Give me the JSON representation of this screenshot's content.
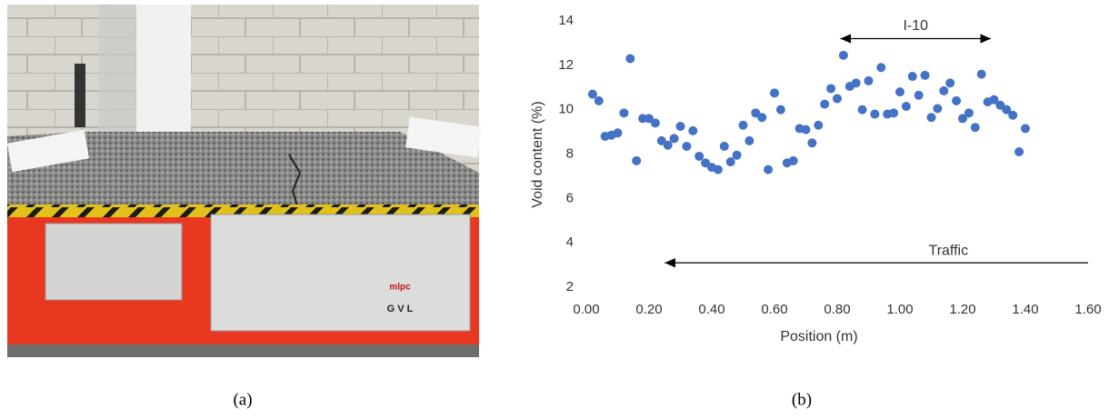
{
  "chart_data": {
    "type": "scatter",
    "x_label": "Position (m)",
    "y_label": "Void content (%)",
    "xlim": [
      0,
      1.6
    ],
    "ylim": [
      2,
      14
    ],
    "xticks": [
      {
        "value": 0,
        "label": "0.00"
      },
      {
        "value": 0.2,
        "label": "0.20"
      },
      {
        "value": 0.4,
        "label": "0.40"
      },
      {
        "value": 0.6,
        "label": "0.60"
      },
      {
        "value": 0.8,
        "label": "0.80"
      },
      {
        "value": 1,
        "label": "1.00"
      },
      {
        "value": 1.2,
        "label": "1.20"
      },
      {
        "value": 1.4,
        "label": "1.40"
      },
      {
        "value": 1.6,
        "label": "1.60"
      }
    ],
    "yticks": [
      2,
      4,
      6,
      8,
      10,
      12,
      14
    ],
    "grid": false,
    "color": "#4472c4",
    "x": [
      0.02,
      0.04,
      0.06,
      0.08,
      0.1,
      0.12,
      0.14,
      0.16,
      0.18,
      0.2,
      0.22,
      0.24,
      0.26,
      0.28,
      0.3,
      0.32,
      0.34,
      0.36,
      0.38,
      0.4,
      0.42,
      0.44,
      0.46,
      0.48,
      0.5,
      0.52,
      0.54,
      0.56,
      0.58,
      0.6,
      0.62,
      0.64,
      0.66,
      0.68,
      0.7,
      0.72,
      0.74,
      0.76,
      0.78,
      0.8,
      0.82,
      0.84,
      0.86,
      0.88,
      0.9,
      0.92,
      0.94,
      0.96,
      0.98,
      1.0,
      1.02,
      1.04,
      1.06,
      1.08,
      1.1,
      1.12,
      1.14,
      1.16,
      1.18,
      1.2,
      1.22,
      1.24,
      1.26,
      1.28,
      1.3,
      1.32,
      1.34,
      1.36,
      1.38,
      1.4
    ],
    "values": [
      10.7,
      10.4,
      8.8,
      8.85,
      8.95,
      9.85,
      12.3,
      7.7,
      9.6,
      9.6,
      9.4,
      8.6,
      8.4,
      8.7,
      9.25,
      8.35,
      9.05,
      7.9,
      7.6,
      7.4,
      7.3,
      8.35,
      7.65,
      7.95,
      9.3,
      8.6,
      9.85,
      9.65,
      7.3,
      10.75,
      10.0,
      7.6,
      7.7,
      9.15,
      9.1,
      8.5,
      9.3,
      10.25,
      10.95,
      10.5,
      12.45,
      11.05,
      11.2,
      10.0,
      11.3,
      9.8,
      11.9,
      9.8,
      9.85,
      10.8,
      10.15,
      11.5,
      10.65,
      11.55,
      9.65,
      10.05,
      10.85,
      11.2,
      10.4,
      9.6,
      9.85,
      9.2,
      11.6,
      10.35,
      10.45,
      10.2,
      10.0,
      9.75,
      8.1,
      9.15
    ],
    "annotations": [
      {
        "text": "I-10",
        "x": [
          0.81,
          1.29
        ],
        "y": 13.2,
        "arrow": "both"
      },
      {
        "text": "Traffic",
        "x": [
          1.6,
          0.25
        ],
        "y": 3.1,
        "arrow": "end"
      }
    ]
  },
  "photo_labels": [
    "mlpc",
    "G V L"
  ],
  "captions": [
    "(a)",
    "(b)"
  ]
}
